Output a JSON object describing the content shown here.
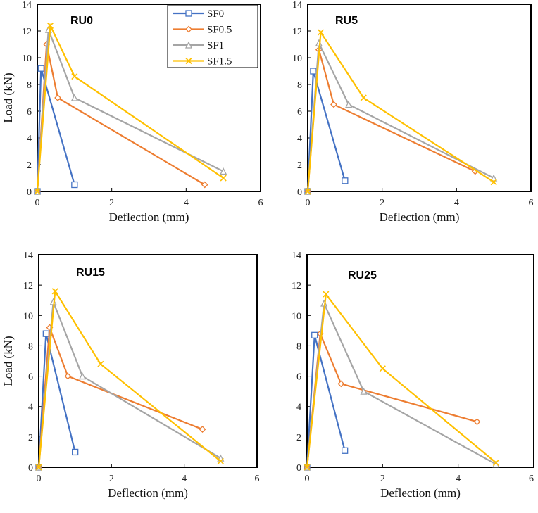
{
  "chart_data": {
    "type": "line",
    "colors": {
      "SF0": "#4472C4",
      "SF0.5": "#ED7D31",
      "SF1": "#A5A5A5",
      "SF1.5": "#FFC000"
    },
    "markers": {
      "SF0": "square",
      "SF0.5": "diamond",
      "SF1": "triangle",
      "SF1.5": "x"
    },
    "legend": {
      "placement": "top-right of first panel",
      "entries": [
        "SF0",
        "SF0.5",
        "SF1",
        "SF1.5"
      ]
    },
    "xlim": [
      0,
      6
    ],
    "ylim": [
      0,
      14
    ],
    "xticks": [
      "0",
      "2",
      "4",
      "6"
    ],
    "yticks": [
      "0",
      "2",
      "4",
      "6",
      "8",
      "10",
      "12",
      "14"
    ],
    "panels": [
      {
        "title": "RU0",
        "xlabel": "Deflection (mm)",
        "ylabel": "Load (kN)",
        "series": [
          {
            "name": "SF0",
            "points": [
              [
                0,
                0
              ],
              [
                0.1,
                9.2
              ],
              [
                1,
                0.5
              ]
            ]
          },
          {
            "name": "SF0.5",
            "points": [
              [
                0,
                0
              ],
              [
                0.25,
                11
              ],
              [
                0.55,
                7
              ],
              [
                4.5,
                0.5
              ]
            ]
          },
          {
            "name": "SF1",
            "points": [
              [
                0,
                0
              ],
              [
                0.3,
                12.1
              ],
              [
                1,
                7
              ],
              [
                5,
                1.5
              ]
            ]
          },
          {
            "name": "SF1.5",
            "points": [
              [
                0,
                0
              ],
              [
                0.35,
                12.4
              ],
              [
                1,
                8.6
              ],
              [
                5,
                1
              ]
            ]
          }
        ]
      },
      {
        "title": "RU5",
        "xlabel": "Deflection (mm)",
        "ylabel": "",
        "series": [
          {
            "name": "SF0",
            "points": [
              [
                0,
                0
              ],
              [
                0.15,
                9
              ],
              [
                1,
                0.8
              ]
            ]
          },
          {
            "name": "SF0.5",
            "points": [
              [
                0,
                0
              ],
              [
                0.3,
                10.6
              ],
              [
                0.7,
                6.5
              ],
              [
                4.5,
                1.5
              ]
            ]
          },
          {
            "name": "SF1",
            "points": [
              [
                0,
                0
              ],
              [
                0.3,
                11.1
              ],
              [
                1.1,
                6.5
              ],
              [
                5,
                1
              ]
            ]
          },
          {
            "name": "SF1.5",
            "points": [
              [
                0,
                0
              ],
              [
                0.35,
                11.9
              ],
              [
                1.5,
                7
              ],
              [
                5,
                0.7
              ]
            ]
          }
        ]
      },
      {
        "title": "RU15",
        "xlabel": "Deflection (mm)",
        "ylabel": "Load (kN)",
        "series": [
          {
            "name": "SF0",
            "points": [
              [
                0,
                0
              ],
              [
                0.2,
                8.8
              ],
              [
                1,
                1
              ]
            ]
          },
          {
            "name": "SF0.5",
            "points": [
              [
                0,
                0
              ],
              [
                0.3,
                9.2
              ],
              [
                0.8,
                6
              ],
              [
                4.5,
                2.5
              ]
            ]
          },
          {
            "name": "SF1",
            "points": [
              [
                0,
                0
              ],
              [
                0.4,
                10.9
              ],
              [
                1.2,
                6
              ],
              [
                5,
                0.6
              ]
            ]
          },
          {
            "name": "SF1.5",
            "points": [
              [
                0,
                0
              ],
              [
                0.45,
                11.6
              ],
              [
                1.7,
                6.8
              ],
              [
                5,
                0.4
              ]
            ]
          }
        ]
      },
      {
        "title": "RU25",
        "xlabel": "Deflection (mm)",
        "ylabel": "",
        "series": [
          {
            "name": "SF0",
            "points": [
              [
                0,
                0
              ],
              [
                0.2,
                8.7
              ],
              [
                1,
                1.1
              ]
            ]
          },
          {
            "name": "SF0.5",
            "points": [
              [
                0,
                0
              ],
              [
                0.35,
                8.8
              ],
              [
                0.9,
                5.5
              ],
              [
                4.5,
                3
              ]
            ]
          },
          {
            "name": "SF1",
            "points": [
              [
                0,
                0
              ],
              [
                0.45,
                10.8
              ],
              [
                1.5,
                5
              ],
              [
                5,
                0.2
              ]
            ]
          },
          {
            "name": "SF1.5",
            "points": [
              [
                0,
                0
              ],
              [
                0.5,
                11.4
              ],
              [
                2,
                6.5
              ],
              [
                5,
                0.3
              ]
            ]
          }
        ]
      }
    ]
  }
}
